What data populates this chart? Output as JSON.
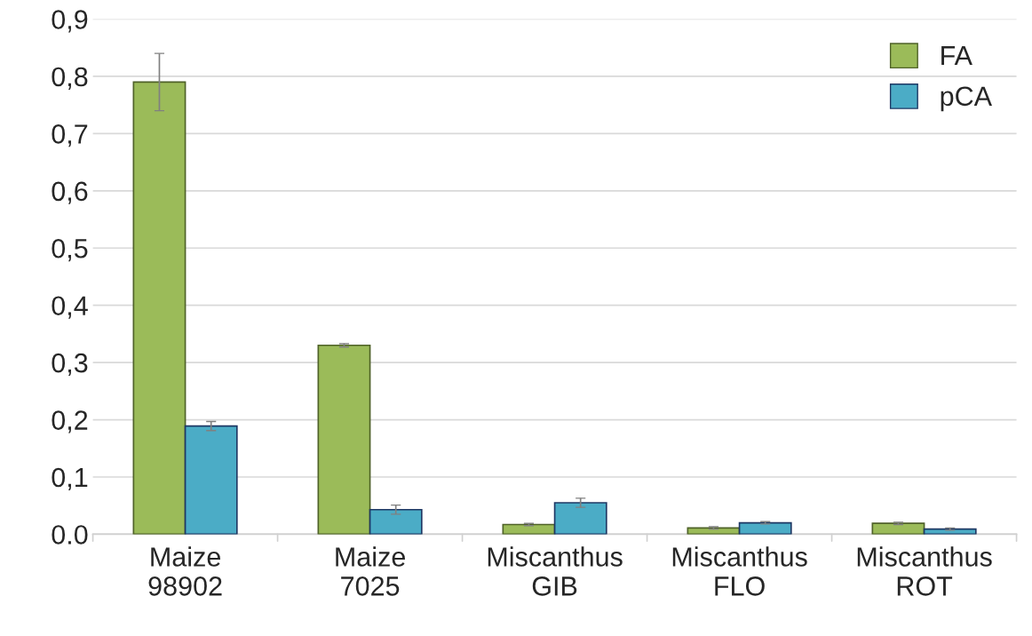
{
  "chart_data": {
    "type": "bar",
    "categories": [
      "Maize\n98902",
      "Maize\n7025",
      "Miscanthus\nGIB",
      "Miscanthus\nFLO",
      "Miscanthus\nROT"
    ],
    "series": [
      {
        "name": "FA",
        "color": "#9bbb59",
        "values": [
          0.79,
          0.33,
          0.017,
          0.011,
          0.019
        ],
        "errors": [
          0.05,
          0.003,
          0.002,
          0.002,
          0.002
        ]
      },
      {
        "name": "pCA",
        "color": "#4bacc6",
        "values": [
          0.189,
          0.043,
          0.055,
          0.02,
          0.009
        ],
        "errors": [
          0.008,
          0.008,
          0.008,
          0.002,
          0.002
        ]
      }
    ],
    "ylim": [
      0,
      0.9
    ],
    "yticks": [
      {
        "value": 0,
        "label": "0.0"
      },
      {
        "value": 0.1,
        "label": "0,1"
      },
      {
        "value": 0.2,
        "label": "0,2"
      },
      {
        "value": 0.3,
        "label": "0,3"
      },
      {
        "value": 0.4,
        "label": "0,4"
      },
      {
        "value": 0.5,
        "label": "0,5"
      },
      {
        "value": 0.6,
        "label": "0,6"
      },
      {
        "value": 0.7,
        "label": "0,7"
      },
      {
        "value": 0.8,
        "label": "0,8"
      },
      {
        "value": 0.9,
        "label": "0,9"
      }
    ],
    "grid": "y",
    "legend": "top right"
  }
}
